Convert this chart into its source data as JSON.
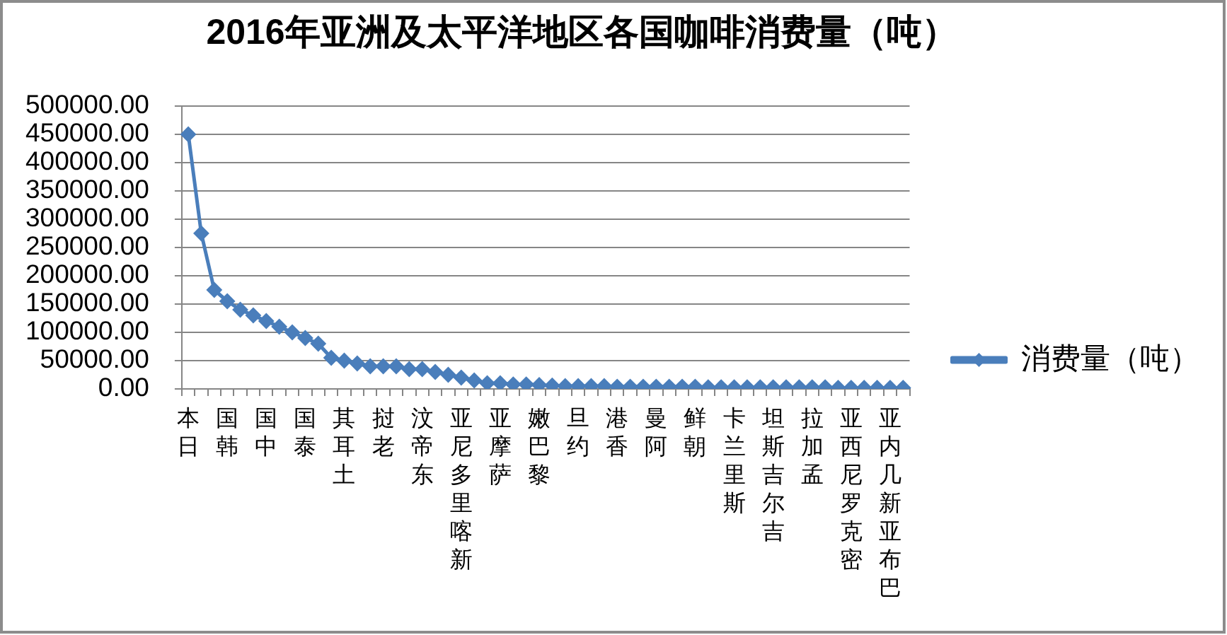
{
  "chart_data": {
    "type": "line",
    "title": "2016年亚洲及太平洋地区各国咖啡消费量（吨）",
    "categories": [
      "日本",
      null,
      null,
      "韩国",
      null,
      null,
      "中国",
      null,
      null,
      "泰国",
      null,
      null,
      "土耳其",
      null,
      null,
      "老挝",
      null,
      null,
      "东帝汶",
      null,
      null,
      "新喀里多尼亚",
      null,
      null,
      "萨摩亚",
      null,
      null,
      "黎巴嫩",
      null,
      null,
      "约旦",
      null,
      null,
      "香港",
      null,
      null,
      "阿曼",
      null,
      null,
      "朝鲜",
      null,
      null,
      "斯里兰卡",
      null,
      null,
      "吉尔吉斯坦",
      null,
      null,
      "孟加拉",
      null,
      null,
      "密克罗尼西亚",
      null,
      null,
      "巴布亚新几内亚",
      null
    ],
    "series": [
      {
        "name": "消费量（吨）",
        "color": "#4a7ebb",
        "values": [
          450000,
          275000,
          175000,
          155000,
          140000,
          130000,
          120000,
          110000,
          100000,
          90000,
          80000,
          55000,
          50000,
          45000,
          40000,
          40000,
          40000,
          35000,
          35000,
          30000,
          25000,
          20000,
          15000,
          10000,
          10000,
          8000,
          8000,
          7000,
          6000,
          5000,
          5000,
          5000,
          5000,
          4000,
          4000,
          4000,
          4000,
          4000,
          4000,
          4000,
          3000,
          3000,
          3000,
          3000,
          3000,
          3000,
          3000,
          3000,
          3000,
          3000,
          2000,
          2000,
          2000,
          2000,
          2000,
          2000
        ]
      }
    ],
    "ylim": [
      0,
      500000
    ],
    "yticks": [
      {
        "value": 0,
        "label": "0.00"
      },
      {
        "value": 50000,
        "label": "50000.00"
      },
      {
        "value": 100000,
        "label": "100000.00"
      },
      {
        "value": 150000,
        "label": "150000.00"
      },
      {
        "value": 200000,
        "label": "200000.00"
      },
      {
        "value": 250000,
        "label": "250000.00"
      },
      {
        "value": 300000,
        "label": "300000.00"
      },
      {
        "value": 350000,
        "label": "350000.00"
      },
      {
        "value": 400000,
        "label": "400000.00"
      },
      {
        "value": 450000,
        "label": "450000.00"
      },
      {
        "value": 500000,
        "label": "500000.00"
      }
    ],
    "grid": "y",
    "legend": "right",
    "marker": "diamond",
    "line_style": "solid"
  }
}
